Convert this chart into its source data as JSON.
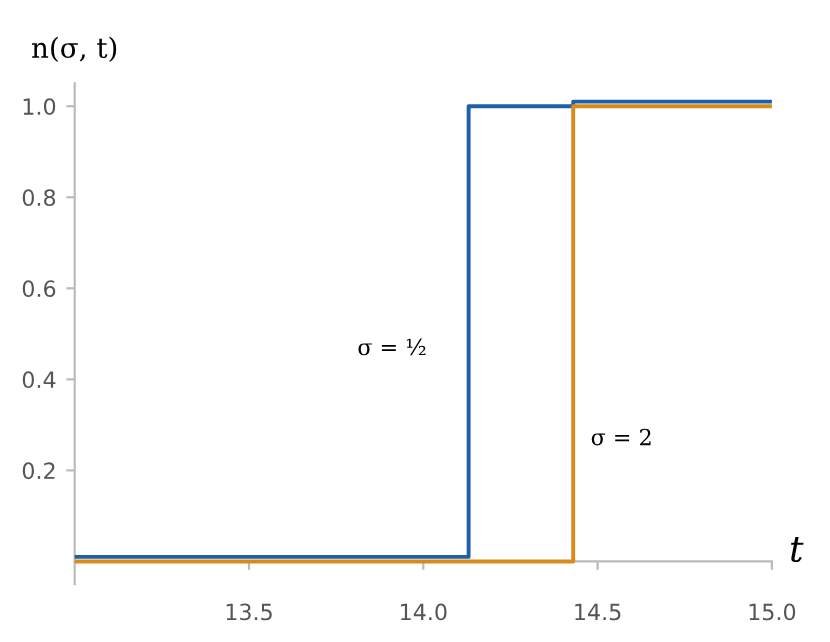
{
  "chart_data": {
    "type": "step",
    "xlabel": "t",
    "ylabel": "n(σ, t)",
    "series": [
      {
        "x": [
          13.0,
          14.13,
          14.43,
          15.0
        ],
        "values": [
          0.01,
          1.0,
          1.01,
          1.01
        ],
        "color": "#1f5fa8"
      },
      {
        "x": [
          13.0,
          14.43,
          15.0
        ],
        "values": [
          0.0,
          1.0,
          1.0
        ],
        "color": "#d98b1a"
      }
    ],
    "annotations": [
      "σ = ½",
      "σ = 2"
    ],
    "xlim": [
      13.0,
      15.0
    ],
    "ylim": [
      -0.05,
      1.05
    ],
    "xticks": [
      13.5,
      {
        "value": 14.0,
        "label": "14.0"
      },
      14.5,
      {
        "value": 15.0,
        "label": "15.0"
      }
    ],
    "yticks": [
      0.2,
      0.4,
      0.6,
      0.8,
      {
        "value": 1.0,
        "label": "1.0"
      }
    ],
    "grid": false,
    "legend": false
  }
}
